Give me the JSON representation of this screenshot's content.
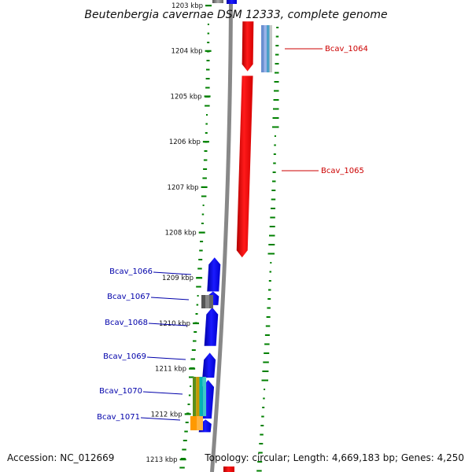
{
  "title": "Beutenbergia cavernae DSM 12333, complete genome",
  "accession": "Accession: NC_012669",
  "topology": "Topology: circular; Length: 4,669,183 bp; Genes: 4,250",
  "kbp_ticks": [
    {
      "label": "1203 kbp",
      "pos": 1203.0
    },
    {
      "label": "1204 kbp",
      "pos": 1204.0
    },
    {
      "label": "1205 kbp",
      "pos": 1205.0
    },
    {
      "label": "1206 kbp",
      "pos": 1206.0
    },
    {
      "label": "1207 kbp",
      "pos": 1207.0
    },
    {
      "label": "1208 kbp",
      "pos": 1208.0
    },
    {
      "label": "1209 kbp",
      "pos": 1209.0
    },
    {
      "label": "1210 kbp",
      "pos": 1210.0
    },
    {
      "label": "1211 kbp",
      "pos": 1211.0
    },
    {
      "label": "1212 kbp",
      "pos": 1212.0
    },
    {
      "label": "1213 kbp",
      "pos": 1213.0
    }
  ],
  "genes": [
    {
      "label": "Bcav_1064",
      "strand": "forward",
      "start": 1203.35,
      "end": 1204.45,
      "color": "#ff0000"
    },
    {
      "label": "Bcav_1065",
      "strand": "forward",
      "start": 1204.55,
      "end": 1208.55,
      "color": "#ff0000"
    },
    {
      "label": "Bcav_1066",
      "strand": "reverse",
      "start": 1208.55,
      "end": 1209.3,
      "color": "#0000ff"
    },
    {
      "label": "Bcav_1067",
      "strand": "reverse",
      "start": 1209.3,
      "end": 1209.6,
      "color": "#0000ff"
    },
    {
      "label": "Bcav_1068",
      "strand": "reverse",
      "start": 1209.65,
      "end": 1210.5,
      "color": "#0000ff"
    },
    {
      "label": "Bcav_1069",
      "strand": "reverse",
      "start": 1210.65,
      "end": 1211.2,
      "color": "#0000ff"
    },
    {
      "label": "Bcav_1070",
      "strand": "reverse",
      "start": 1211.25,
      "end": 1212.1,
      "color": "#0000ff"
    },
    {
      "label": "Bcav_1071",
      "strand": "reverse",
      "start": 1212.12,
      "end": 1212.4,
      "color": "#0000ff"
    }
  ],
  "colors": {
    "backbone": "#888888",
    "gc_track": "#008000",
    "forward_gene": "#ff0000",
    "reverse_gene": "#0000ff",
    "forward_label": "#cc0000",
    "reverse_label": "#0000aa"
  }
}
